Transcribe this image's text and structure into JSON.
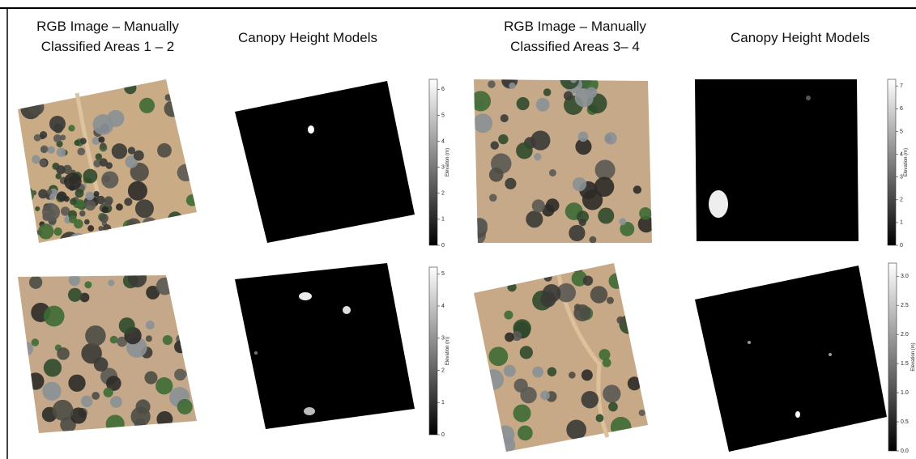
{
  "headers": [
    {
      "lines": [
        "RGB Image – Manually",
        "Classified Areas 1 – 2"
      ]
    },
    {
      "lines": [
        "Canopy Height Models"
      ]
    },
    {
      "lines": [
        "RGB Image – Manually",
        "Classified Areas 3– 4"
      ]
    },
    {
      "lines": [
        "Canopy Height Models"
      ]
    }
  ],
  "colorbars": [
    {
      "label": "Elevation (m)",
      "ticks": [
        "0",
        "1",
        "2",
        "3",
        "4",
        "5",
        "6"
      ]
    },
    {
      "label": "Elevation (m)",
      "ticks": [
        "0",
        "1",
        "2",
        "3",
        "4",
        "5",
        "6",
        "7"
      ]
    },
    {
      "label": "Elevation (m)",
      "ticks": [
        "0",
        "1",
        "2",
        "3",
        "4",
        "5"
      ]
    },
    {
      "label": "Elevation (m)",
      "ticks": [
        "0.0",
        "0.5",
        "1.0",
        "1.5",
        "2.0",
        "2.5",
        "3.0"
      ]
    }
  ]
}
